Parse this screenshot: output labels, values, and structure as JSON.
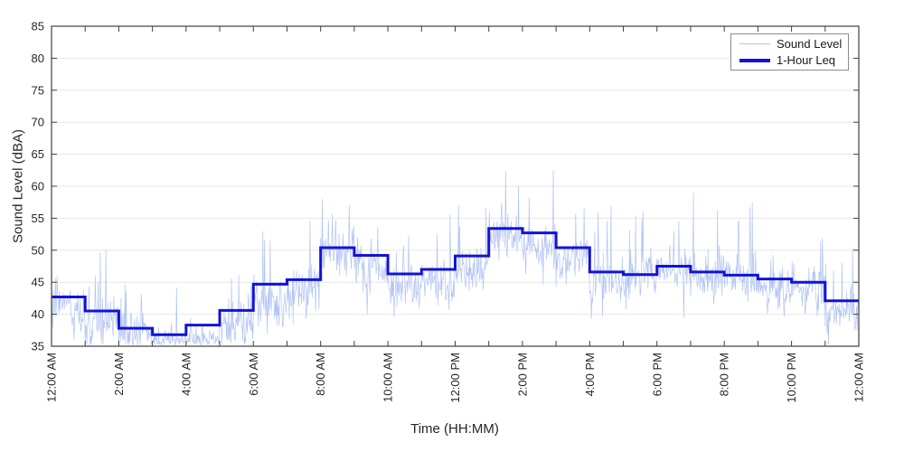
{
  "chart_data": {
    "type": "line",
    "title": "",
    "xlabel": "Time (HH:MM)",
    "ylabel": "Sound Level (dBA)",
    "ylim": [
      35,
      85
    ],
    "ytick_step": 5,
    "x_range_hours": [
      0,
      24
    ],
    "xtick_every_hours": 1,
    "xlabel_every_hours": 2,
    "xtick_labels": [
      "12:00 AM",
      "2:00 AM",
      "4:00 AM",
      "6:00 AM",
      "8:00 AM",
      "10:00 AM",
      "12:00 PM",
      "2:00 PM",
      "4:00 PM",
      "6:00 PM",
      "8:00 PM",
      "10:00 PM",
      "12:00 AM"
    ],
    "grid": "horizontal-only",
    "legend": {
      "position": "top-right-inside",
      "entries": [
        {
          "label": "Sound Level",
          "color": "#b2c4f2",
          "sample": "thin"
        },
        {
          "label": "1-Hour Leq",
          "color": "#1212d8",
          "sample": "thick"
        }
      ]
    },
    "series": [
      {
        "name": "Sound Level",
        "kind": "minute-samples",
        "color": "#b2c4f2",
        "line_width": 0.7,
        "note": "1-minute sound level trace; synthesized deterministically to match appearance",
        "gen": {
          "seed": 777,
          "minutes": 1440,
          "offset_from_leq": -1.7,
          "sigma": 1.6,
          "wander_step": 0.5,
          "wander_decay": 0.985,
          "spike_prob": 0.045,
          "spike_min": 3,
          "spike_max": 12,
          "bump_prob": 0.09,
          "bump_min": 1,
          "bump_max": 3.5,
          "dip_prob": 0.05,
          "dip_min": 2,
          "dip_max": 5,
          "floor": 35.15,
          "ceil": 62.6
        }
      },
      {
        "name": "1-Hour Leq",
        "kind": "hourly-step",
        "color": "#1212d8",
        "line_width": 3,
        "values": [
          42.7,
          40.5,
          37.8,
          36.8,
          38.3,
          40.6,
          44.7,
          45.4,
          50.4,
          49.2,
          46.3,
          47.0,
          49.1,
          53.4,
          52.7,
          50.4,
          46.6,
          46.2,
          47.5,
          46.6,
          46.1,
          45.5,
          45.0,
          42.1
        ]
      }
    ],
    "axis": {
      "frame_color": "#404040",
      "grid_color": "#e6e6e6",
      "text_color": "#262626",
      "tick_len": 6,
      "tick_font_size": 13
    }
  }
}
